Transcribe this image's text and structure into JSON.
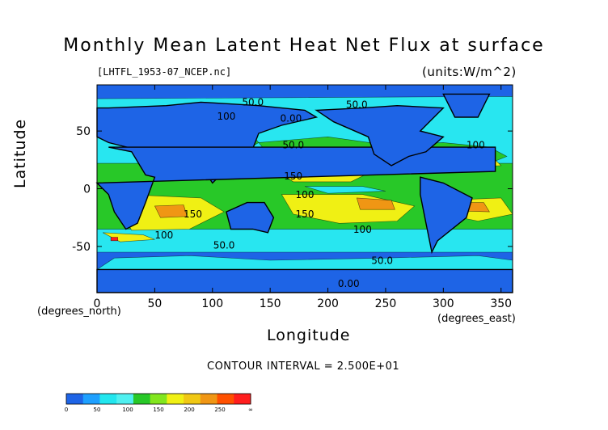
{
  "chart_data": {
    "type": "heatmap",
    "title": "Monthly Mean Latent Heat Net Flux at surface",
    "subtitle": "[LHTFL_1953-07_NCEP.nc]",
    "units_label": "(units:W/m^2)",
    "xlabel": "Longitude",
    "ylabel": "Latitude",
    "x_unit_label": "(degrees_east)",
    "y_unit_label": "(degrees_north)",
    "xlim": [
      0,
      360
    ],
    "ylim": [
      -90,
      90
    ],
    "x_ticks": [
      0,
      50,
      100,
      150,
      200,
      250,
      300,
      350
    ],
    "y_ticks": [
      -50,
      0,
      50
    ],
    "contour_labels": [
      {
        "text": "50.0",
        "lon": 135,
        "lat": 72
      },
      {
        "text": "100",
        "lon": 112,
        "lat": 60
      },
      {
        "text": "0.00",
        "lon": 168,
        "lat": 58
      },
      {
        "text": "50.0",
        "lon": 225,
        "lat": 70
      },
      {
        "text": "50.0",
        "lon": 170,
        "lat": 35
      },
      {
        "text": "100",
        "lon": 328,
        "lat": 35
      },
      {
        "text": "150",
        "lon": 170,
        "lat": 8
      },
      {
        "text": "100",
        "lon": 180,
        "lat": -8
      },
      {
        "text": "150",
        "lon": 83,
        "lat": -25
      },
      {
        "text": "150",
        "lon": 180,
        "lat": -25
      },
      {
        "text": "100",
        "lon": 58,
        "lat": -43
      },
      {
        "text": "100",
        "lon": 230,
        "lat": -38
      },
      {
        "text": "50.0",
        "lon": 110,
        "lat": -52
      },
      {
        "text": "50.0",
        "lon": 247,
        "lat": -65
      },
      {
        "text": "0.00",
        "lon": 218,
        "lat": -85
      }
    ],
    "contour_interval_text": "CONTOUR INTERVAL = 2.500E+01",
    "colorbar": {
      "colors": [
        "#1e64e6",
        "#1ea0ff",
        "#22e6ee",
        "#50f0f0",
        "#28c828",
        "#82e61e",
        "#f0f014",
        "#f0c814",
        "#f09614",
        "#ff5000",
        "#ff1e1e"
      ],
      "labels": [
        "0",
        "50",
        "100",
        "150",
        "200",
        "250",
        "∞"
      ]
    },
    "color_scale": [
      {
        "min": 0,
        "max": 50,
        "color": "#1e64e6"
      },
      {
        "min": 50,
        "max": 100,
        "color": "#28e6f0"
      },
      {
        "min": 100,
        "max": 150,
        "color": "#28c828"
      },
      {
        "min": 150,
        "max": 200,
        "color": "#f0f014"
      },
      {
        "min": 200,
        "max": 250,
        "color": "#f09614"
      },
      {
        "min": 250,
        "max": null,
        "color": "#ff1e1e"
      }
    ]
  }
}
